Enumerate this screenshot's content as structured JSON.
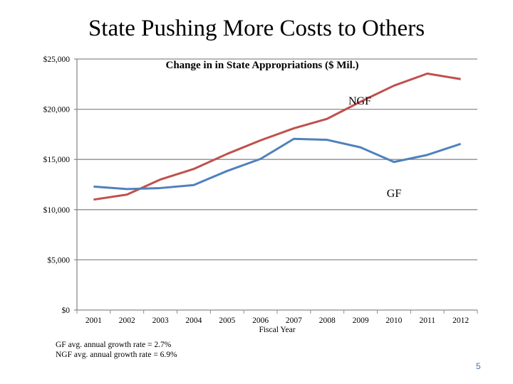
{
  "slide": {
    "title": "State Pushing More Costs to Others",
    "notes": [
      "GF avg. annual growth rate  = 2.7%",
      "NGF avg. annual growth rate  = 6.9%"
    ],
    "page_number": "5"
  },
  "chart_data": {
    "type": "line",
    "title": "Change in in State Appropriations ($ Mil.)",
    "xlabel": "Fiscal Year",
    "ylabel": "",
    "categories": [
      "2001",
      "2002",
      "2003",
      "2004",
      "2005",
      "2006",
      "2007",
      "2008",
      "2009",
      "2010",
      "2011",
      "2012"
    ],
    "ylim": [
      0,
      25000
    ],
    "yticks": [
      0,
      5000,
      10000,
      15000,
      20000,
      25000
    ],
    "ytick_labels": [
      "$0",
      "$5,000",
      "$10,000",
      "$15,000",
      "$20,000",
      "$25,000"
    ],
    "grid": true,
    "series": [
      {
        "name": "NGF",
        "color": "#c0504d",
        "values": [
          11000,
          11500,
          13000,
          14050,
          15550,
          16900,
          18100,
          19050,
          20750,
          22350,
          23550,
          23000
        ]
      },
      {
        "name": "GF",
        "color": "#4f81bd",
        "values": [
          12300,
          12050,
          12150,
          12450,
          13850,
          15050,
          17050,
          16950,
          16200,
          14750,
          15450,
          16550
        ]
      }
    ]
  }
}
